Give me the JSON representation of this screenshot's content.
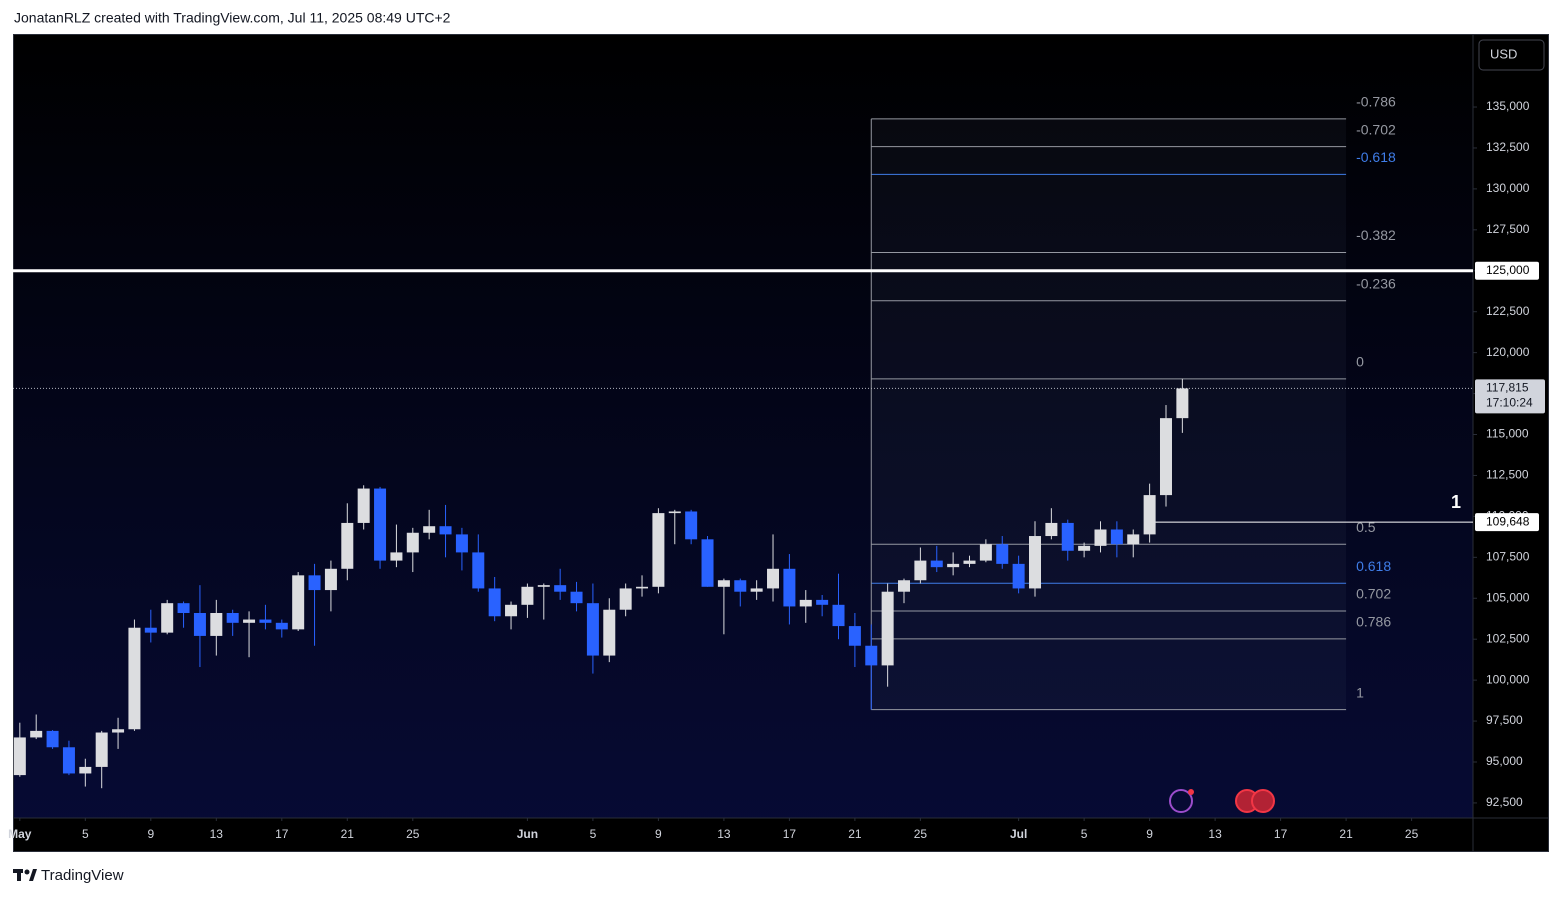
{
  "header": {
    "text": "JonatanRLZ created with TradingView.com, Jul 11, 2025 08:49 UTC+2"
  },
  "footer": {
    "brand": "TradingView"
  },
  "chart_data": {
    "type": "candlestick",
    "currency": "USD",
    "up_color": "#dcdde0",
    "down_color": "#2962ff",
    "xlim": [
      "2025-04-30T14:00",
      "2025-07-28T18:00"
    ],
    "ylim": [
      91580,
      139460
    ],
    "xticks": [
      {
        "value": "2025-05-01",
        "label": "May"
      },
      {
        "value": "2025-05-05",
        "label": "5"
      },
      {
        "value": "2025-05-09",
        "label": "9"
      },
      {
        "value": "2025-05-13",
        "label": "13"
      },
      {
        "value": "2025-05-17",
        "label": "17"
      },
      {
        "value": "2025-05-21",
        "label": "21"
      },
      {
        "value": "2025-05-25",
        "label": "25"
      },
      {
        "value": "2025-06-01",
        "label": "Jun"
      },
      {
        "value": "2025-06-05",
        "label": "5"
      },
      {
        "value": "2025-06-09",
        "label": "9"
      },
      {
        "value": "2025-06-13",
        "label": "13"
      },
      {
        "value": "2025-06-17",
        "label": "17"
      },
      {
        "value": "2025-06-21",
        "label": "21"
      },
      {
        "value": "2025-06-25",
        "label": "25"
      },
      {
        "value": "2025-07-01",
        "label": "Jul"
      },
      {
        "value": "2025-07-05",
        "label": "5"
      },
      {
        "value": "2025-07-09",
        "label": "9"
      },
      {
        "value": "2025-07-13",
        "label": "13"
      },
      {
        "value": "2025-07-17",
        "label": "17"
      },
      {
        "value": "2025-07-21",
        "label": "21"
      },
      {
        "value": "2025-07-25",
        "label": "25"
      }
    ],
    "yticks": [
      {
        "value": 92500,
        "label": "92,500"
      },
      {
        "value": 95000,
        "label": "95,000"
      },
      {
        "value": 97500,
        "label": "97,500"
      },
      {
        "value": 100000,
        "label": "100,000"
      },
      {
        "value": 102500,
        "label": "102,500"
      },
      {
        "value": 105000,
        "label": "105,000"
      },
      {
        "value": 107500,
        "label": "107,500"
      },
      {
        "value": 110000,
        "label": "110,000"
      },
      {
        "value": 112500,
        "label": "112,500"
      },
      {
        "value": 115000,
        "label": "115,000"
      },
      {
        "value": 117500,
        "label": "117,500"
      },
      {
        "value": 120000,
        "label": "120,000"
      },
      {
        "value": 122500,
        "label": "122,500"
      },
      {
        "value": 125000,
        "label": "125,000"
      },
      {
        "value": 127500,
        "label": "127,500"
      },
      {
        "value": 130000,
        "label": "130,000"
      },
      {
        "value": 132500,
        "label": "132,500"
      },
      {
        "value": 135000,
        "label": "135,000"
      }
    ],
    "x": [
      "2025-05-01",
      "2025-05-02",
      "2025-05-03",
      "2025-05-04",
      "2025-05-05",
      "2025-05-06",
      "2025-05-07",
      "2025-05-08",
      "2025-05-09",
      "2025-05-10",
      "2025-05-11",
      "2025-05-12",
      "2025-05-13",
      "2025-05-14",
      "2025-05-15",
      "2025-05-16",
      "2025-05-17",
      "2025-05-18",
      "2025-05-19",
      "2025-05-20",
      "2025-05-21",
      "2025-05-22",
      "2025-05-23",
      "2025-05-24",
      "2025-05-25",
      "2025-05-26",
      "2025-05-27",
      "2025-05-28",
      "2025-05-29",
      "2025-05-30",
      "2025-05-31",
      "2025-06-01",
      "2025-06-02",
      "2025-06-03",
      "2025-06-04",
      "2025-06-05",
      "2025-06-06",
      "2025-06-07",
      "2025-06-08",
      "2025-06-09",
      "2025-06-10",
      "2025-06-11",
      "2025-06-12",
      "2025-06-13",
      "2025-06-14",
      "2025-06-15",
      "2025-06-16",
      "2025-06-17",
      "2025-06-18",
      "2025-06-19",
      "2025-06-20",
      "2025-06-21",
      "2025-06-22",
      "2025-06-23",
      "2025-06-24",
      "2025-06-25",
      "2025-06-26",
      "2025-06-27",
      "2025-06-28",
      "2025-06-29",
      "2025-06-30",
      "2025-07-01",
      "2025-07-02",
      "2025-07-03",
      "2025-07-04",
      "2025-07-05",
      "2025-07-06",
      "2025-07-07",
      "2025-07-08",
      "2025-07-09",
      "2025-07-10",
      "2025-07-11"
    ],
    "open": [
      94200,
      96500,
      96900,
      95900,
      94300,
      94700,
      96800,
      97000,
      103200,
      102900,
      104700,
      104100,
      102700,
      104100,
      103500,
      103700,
      103500,
      103100,
      106400,
      105500,
      106800,
      109600,
      111700,
      107300,
      107800,
      109000,
      109400,
      108900,
      107800,
      105600,
      103900,
      104600,
      105700,
      105800,
      105400,
      104700,
      101500,
      104300,
      105600,
      105700,
      110200,
      110300,
      108600,
      105700,
      106100,
      105400,
      105600,
      106800,
      104500,
      104900,
      104600,
      103300,
      102100,
      100900,
      105400,
      106100,
      107300,
      106900,
      107100,
      107300,
      108300,
      107100,
      105600,
      108800,
      109600,
      107900,
      108200,
      109200,
      108300,
      108900,
      111300,
      116000
    ],
    "high": [
      97400,
      97900,
      96950,
      96300,
      95200,
      96900,
      97700,
      103700,
      104300,
      104900,
      104800,
      105800,
      104900,
      104300,
      104200,
      104600,
      103700,
      106600,
      107100,
      107300,
      110800,
      111900,
      111800,
      109500,
      109300,
      110400,
      110700,
      109300,
      108900,
      106300,
      104800,
      105900,
      105900,
      106800,
      106000,
      105900,
      105000,
      105900,
      106400,
      110500,
      110400,
      110400,
      108800,
      106200,
      106200,
      106100,
      108900,
      107700,
      105500,
      105200,
      106500,
      104100,
      103400,
      105900,
      106200,
      108100,
      108200,
      107800,
      107600,
      108600,
      108800,
      107600,
      109700,
      110500,
      109800,
      108400,
      109700,
      109700,
      109200,
      112000,
      116800,
      118400
    ],
    "low": [
      94100,
      96400,
      95800,
      94200,
      93500,
      93400,
      95800,
      96900,
      102300,
      102800,
      103200,
      100800,
      101500,
      102700,
      101400,
      103100,
      102600,
      103000,
      102100,
      104200,
      106100,
      109200,
      106800,
      106900,
      106600,
      108600,
      107500,
      106700,
      105400,
      103600,
      103100,
      103800,
      103700,
      104900,
      104200,
      100400,
      101100,
      103900,
      105100,
      105300,
      108300,
      108300,
      105700,
      102800,
      104500,
      104900,
      104800,
      103400,
      103500,
      103900,
      102500,
      100800,
      98200,
      99600,
      104700,
      105900,
      106600,
      106400,
      106900,
      107200,
      106800,
      105300,
      105100,
      108600,
      107300,
      107500,
      107800,
      107500,
      107500,
      108400,
      110600,
      115100
    ],
    "close": [
      96500,
      96900,
      95900,
      94300,
      94700,
      96800,
      97000,
      103200,
      102900,
      104700,
      104100,
      102700,
      104100,
      103500,
      103700,
      103500,
      103100,
      106400,
      105500,
      106800,
      109600,
      111700,
      107300,
      107800,
      109000,
      109400,
      108900,
      107800,
      105600,
      103900,
      104600,
      105700,
      105800,
      105400,
      104700,
      101500,
      104300,
      105600,
      105700,
      110200,
      110300,
      108600,
      105700,
      106100,
      105400,
      105600,
      106800,
      104500,
      104900,
      104600,
      103300,
      102100,
      100900,
      105400,
      106100,
      107300,
      106900,
      107100,
      107300,
      108300,
      107100,
      105600,
      108800,
      109600,
      107900,
      108200,
      109200,
      108300,
      108900,
      111300,
      116000,
      117815
    ],
    "last_price": {
      "value": 117815,
      "label": "117,815"
    },
    "countdown": "17:10:24",
    "horizontal_lines": [
      {
        "price": {
          "value": 125000,
          "label": "125,000"
        },
        "color": "#ffffff"
      }
    ],
    "ray": {
      "price": {
        "value": 109648,
        "label": "109,648"
      },
      "start": "2025-07-09",
      "text": "1",
      "color": "#ffffff"
    },
    "fibonacci": {
      "start": "2025-06-22",
      "end": "2025-07-21",
      "price_0": 118400,
      "price_1": 98200,
      "levels": [
        {
          "level": -0.786,
          "color": "#9598a1"
        },
        {
          "level": -0.702,
          "color": "#9598a1"
        },
        {
          "level": -0.618,
          "color": "#3f7de8"
        },
        {
          "level": -0.382,
          "color": "#9598a1"
        },
        {
          "level": -0.236,
          "color": "#9598a1"
        },
        {
          "level": 0,
          "color": "#9598a1"
        },
        {
          "level": 0.5,
          "color": "#9598a1"
        },
        {
          "level": 0.618,
          "color": "#3f7de8"
        },
        {
          "level": 0.702,
          "color": "#9598a1"
        },
        {
          "level": 0.786,
          "color": "#9598a1"
        },
        {
          "level": 1,
          "color": "#9598a1"
        }
      ]
    }
  }
}
